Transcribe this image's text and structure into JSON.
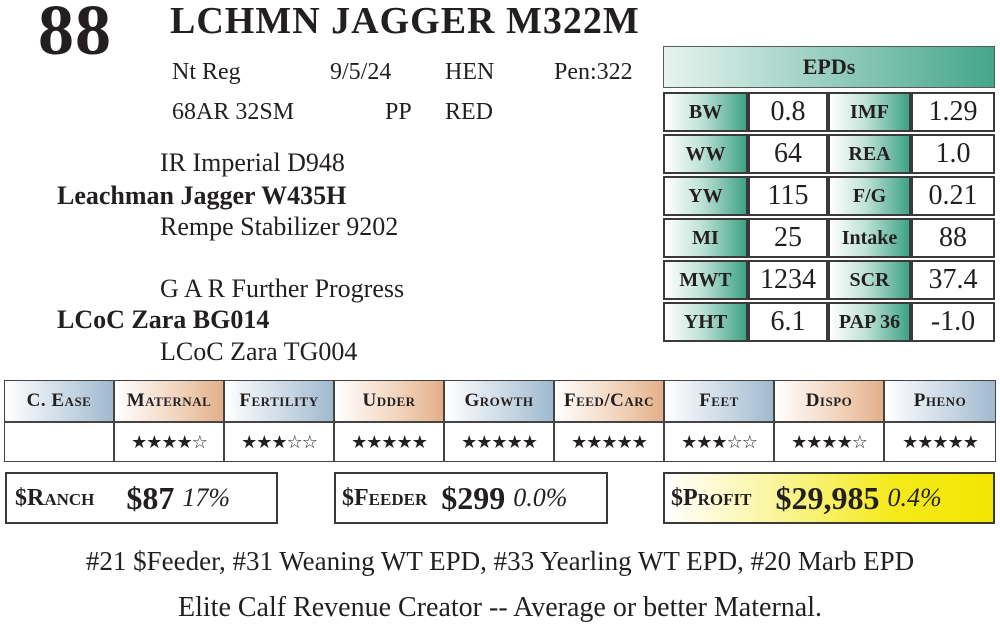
{
  "lot_number": "88",
  "animal_name": "LCHMN JAGGER M322M",
  "info": {
    "reg": "Nt Reg",
    "birth_date": "9/5/24",
    "tag1": "HEN",
    "pen": "Pen:322",
    "tattoo": "68AR 32SM",
    "polled": "PP",
    "color": "RED"
  },
  "pedigree": {
    "sire_sire": "IR Imperial D948",
    "sire": "Leachman Jagger W435H",
    "sire_dam": "Rempe Stabilizer 9202",
    "dam_sire": "G A R Further Progress",
    "dam": "LCoC Zara BG014",
    "dam_dam": "LCoC Zara TG004"
  },
  "epds": {
    "title": "EPDs",
    "rows": [
      {
        "l1": "BW",
        "v1": "0.8",
        "l2": "IMF",
        "v2": "1.29"
      },
      {
        "l1": "WW",
        "v1": "64",
        "l2": "REA",
        "v2": "1.0"
      },
      {
        "l1": "YW",
        "v1": "115",
        "l2": "F/G",
        "v2": "0.21"
      },
      {
        "l1": "MI",
        "v1": "25",
        "l2": "Intake",
        "v2": "88"
      },
      {
        "l1": "MWT",
        "v1": "1234",
        "l2": "SCR",
        "v2": "37.4"
      },
      {
        "l1": "YHT",
        "v1": "6.1",
        "l2": "PAP 36",
        "v2": "-1.0"
      }
    ]
  },
  "traits": [
    {
      "label": "C. Ease",
      "stars": ""
    },
    {
      "label": "Maternal",
      "stars": "★★★★☆"
    },
    {
      "label": "Fertility",
      "stars": "★★★☆☆"
    },
    {
      "label": "Udder",
      "stars": "★★★★★"
    },
    {
      "label": "Growth",
      "stars": "★★★★★"
    },
    {
      "label": "Feed/Carc",
      "stars": "★★★★★"
    },
    {
      "label": "Feet",
      "stars": "★★★☆☆"
    },
    {
      "label": "Dispo",
      "stars": "★★★★☆"
    },
    {
      "label": "Pheno",
      "stars": "★★★★★"
    }
  ],
  "indexes": {
    "ranch": {
      "label": "$Ranch",
      "amount": "$87",
      "pct": "17%"
    },
    "feeder": {
      "label": "$Feeder",
      "amount": "$299",
      "pct": "0.0%"
    },
    "profit": {
      "label": "$Profit",
      "amount": "$29,985",
      "pct": "0.4%"
    }
  },
  "notes": {
    "rankings": "#21 $Feeder, #31 Weaning WT EPD, #33 Yearling WT EPD, #20 Marb EPD",
    "comment": "Elite Calf Revenue Creator -- Average or better Maternal."
  },
  "colors": {
    "epd_accent": "#43a68a",
    "trait_blue": "#9fb9cf",
    "trait_orange": "#e3b08a",
    "profit_yellow": "#f5ea1a"
  }
}
